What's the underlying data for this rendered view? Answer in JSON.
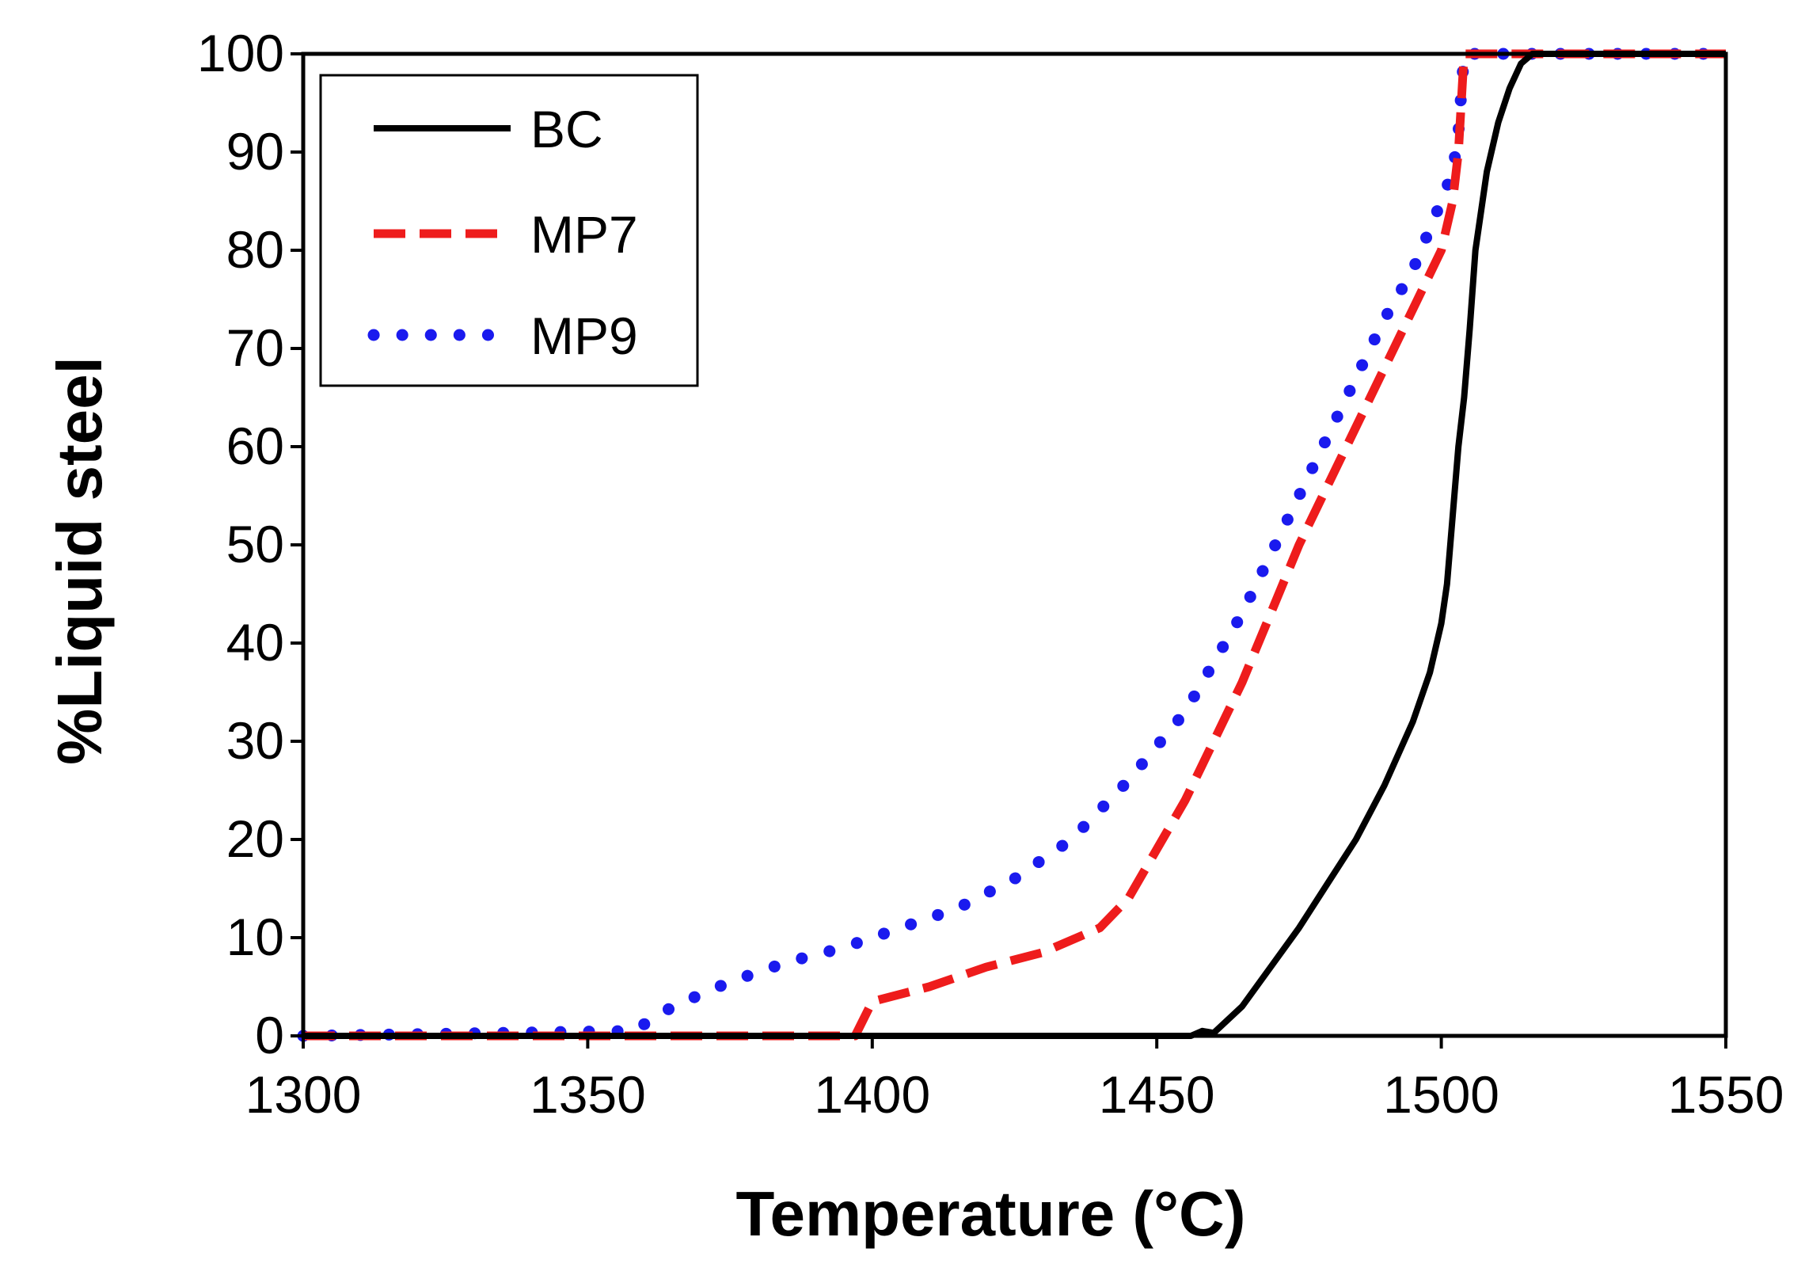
{
  "chart_data": {
    "type": "line",
    "title": "",
    "xlabel": "Temperature (°C)",
    "ylabel": "%Liquid steel",
    "xlim": [
      1300,
      1550
    ],
    "ylim": [
      0,
      100
    ],
    "xticks": [
      1300,
      1350,
      1400,
      1450,
      1500,
      1550
    ],
    "yticks": [
      0,
      10,
      20,
      30,
      40,
      50,
      60,
      70,
      80,
      90,
      100
    ],
    "xtick_labels": [
      "1300",
      "1350",
      "1400",
      "1450",
      "1500",
      "1550"
    ],
    "ytick_labels": [
      "0",
      "10",
      "20",
      "30",
      "40",
      "50",
      "60",
      "70",
      "80",
      "90",
      "100"
    ],
    "grid": false,
    "legend_position": "top-left",
    "series": [
      {
        "name": "BC",
        "color": "#000000",
        "style": "solid",
        "x": [
          1300,
          1456,
          1458,
          1460,
          1465,
          1470,
          1475,
          1480,
          1485,
          1490,
          1495,
          1498,
          1500,
          1501,
          1502,
          1503,
          1504,
          1505,
          1506,
          1507,
          1508,
          1510,
          1512,
          1514,
          1516,
          1550
        ],
        "y": [
          0,
          0,
          0.5,
          0.3,
          3,
          7,
          11,
          15.5,
          20,
          25.5,
          32,
          37,
          42,
          46,
          53,
          60,
          65,
          72,
          80,
          84,
          88,
          93,
          96.5,
          99,
          100,
          100
        ]
      },
      {
        "name": "MP7",
        "color": "#ee1c1c",
        "style": "dashed",
        "x": [
          1300,
          1397,
          1400,
          1410,
          1420,
          1430,
          1440,
          1445,
          1450,
          1455,
          1460,
          1465,
          1470,
          1475,
          1480,
          1485,
          1490,
          1495,
          1500,
          1502,
          1503,
          1503.5,
          1504,
          1550
        ],
        "y": [
          0,
          0,
          3.5,
          5,
          7,
          8.5,
          11,
          14,
          19,
          24,
          30,
          36,
          43,
          50,
          56,
          62,
          68,
          74,
          80,
          85,
          90,
          95,
          100,
          100
        ]
      },
      {
        "name": "MP9",
        "color": "#1a1aee",
        "style": "dotted",
        "x": [
          1300,
          1358,
          1365,
          1375,
          1385,
          1395,
          1405,
          1415,
          1425,
          1435,
          1445,
          1455,
          1460,
          1465,
          1470,
          1475,
          1480,
          1485,
          1490,
          1495,
          1500,
          1502,
          1503,
          1504,
          1550
        ],
        "y": [
          0,
          0.5,
          3,
          5.5,
          7.5,
          9,
          11,
          13,
          16,
          20,
          26,
          33,
          38,
          43,
          49,
          55,
          61,
          67,
          73,
          78,
          85,
          88,
          92,
          100,
          100
        ]
      }
    ]
  }
}
